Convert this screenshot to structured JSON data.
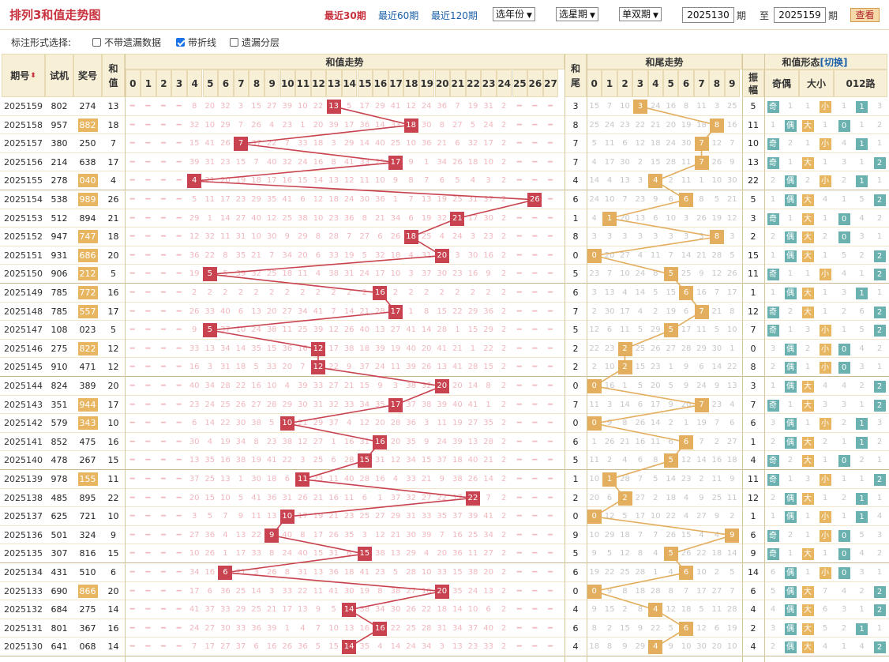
{
  "header": {
    "title": "排列3和值走势图",
    "periods": [
      "最近30期",
      "最近60期",
      "最近120期"
    ],
    "active_period": 0,
    "year_select": "选年份",
    "week_select": "选星期",
    "parity_select": "单双期",
    "from_issue": "2025130",
    "from_suffix": "期",
    "to_prefix": "至",
    "to_issue": "2025159",
    "to_suffix": "期",
    "query_label": "查看"
  },
  "options": {
    "label": "标注形式选择:",
    "items": [
      {
        "label": "不带遗漏数据",
        "checked": false
      },
      {
        "label": "带折线",
        "checked": true
      },
      {
        "label": "遗漏分层",
        "checked": false
      }
    ]
  },
  "columns": {
    "issue": "期号",
    "trial": "试机",
    "draw": "奖号",
    "sum": "和值",
    "sum_trend": "和值走势",
    "tail": "和尾",
    "tail_trend": "和尾走势",
    "amplitude": "振幅",
    "sum_form": "和值形态",
    "switch": "[切换]",
    "odd_even": "奇偶",
    "size": "大小",
    "route": "012路",
    "sum_values": [
      "0",
      "1",
      "2",
      "3",
      "4",
      "5",
      "6",
      "7",
      "8",
      "9",
      "10",
      "11",
      "12",
      "13",
      "14",
      "15",
      "16",
      "17",
      "18",
      "19",
      "20",
      "21",
      "22",
      "23",
      "24",
      "25",
      "26",
      "27"
    ],
    "tail_values": [
      "0",
      "1",
      "2",
      "3",
      "4",
      "5",
      "6",
      "7",
      "8",
      "9"
    ],
    "route_values": [
      "0",
      "1",
      "2"
    ]
  },
  "colors": {
    "sum_mark": "#c8424f",
    "tail_mark": "#e3ae5e",
    "teal": "#6bb1b0",
    "gold": "#e8b560"
  },
  "rows": [
    {
      "issue": "2025159",
      "trial": "802",
      "draw": "274",
      "group6": false,
      "sum": "13",
      "tail": "3",
      "amp": "5",
      "oe": "奇",
      "oeIsOdd": true,
      "oeMiss": "1",
      "sz": "小",
      "szIsBig": false,
      "szMiss": "1",
      "route": "1",
      "r": [
        "1",
        "1",
        "3"
      ]
    },
    {
      "issue": "2025158",
      "trial": "957",
      "draw": "882",
      "group6": true,
      "sum": "18",
      "tail": "8",
      "amp": "11",
      "oe": "偶",
      "oeIsOdd": false,
      "oeMiss": "1",
      "sz": "大",
      "szIsBig": true,
      "szMiss": "1",
      "route": "0",
      "r": [
        "0",
        "1",
        "2"
      ]
    },
    {
      "issue": "2025157",
      "trial": "380",
      "draw": "250",
      "group6": false,
      "sum": "7",
      "tail": "7",
      "amp": "10",
      "oe": "奇",
      "oeIsOdd": true,
      "oeMiss": "2",
      "sz": "小",
      "szIsBig": false,
      "szMiss": "1",
      "route": "1",
      "r": [
        "4",
        "1",
        "1"
      ]
    },
    {
      "issue": "2025156",
      "trial": "214",
      "draw": "638",
      "group6": false,
      "sum": "17",
      "tail": "7",
      "amp": "13",
      "oe": "奇",
      "oeIsOdd": true,
      "oeMiss": "1",
      "sz": "大",
      "szIsBig": true,
      "szMiss": "1",
      "route": "2",
      "r": [
        "3",
        "1",
        "2"
      ]
    },
    {
      "issue": "2025155",
      "trial": "278",
      "draw": "040",
      "group6": true,
      "sum": "4",
      "tail": "4",
      "amp": "22",
      "oe": "偶",
      "oeIsOdd": false,
      "oeMiss": "2",
      "sz": "小",
      "szIsBig": false,
      "szMiss": "2",
      "route": "1",
      "r": [
        "2",
        "1",
        "1"
      ]
    },
    {
      "issue": "2025154",
      "trial": "538",
      "draw": "989",
      "group6": true,
      "sum": "26",
      "tail": "6",
      "amp": "5",
      "oe": "偶",
      "oeIsOdd": false,
      "oeMiss": "1",
      "sz": "大",
      "szIsBig": true,
      "szMiss": "4",
      "route": "2",
      "r": [
        "1",
        "5",
        "2"
      ]
    },
    {
      "issue": "2025153",
      "trial": "512",
      "draw": "894",
      "group6": false,
      "sum": "21",
      "tail": "1",
      "amp": "3",
      "oe": "奇",
      "oeIsOdd": true,
      "oeMiss": "1",
      "sz": "大",
      "szIsBig": true,
      "szMiss": "1",
      "route": "0",
      "r": [
        "0",
        "4",
        "2"
      ]
    },
    {
      "issue": "2025152",
      "trial": "947",
      "draw": "747",
      "group6": true,
      "sum": "18",
      "tail": "8",
      "amp": "2",
      "oe": "偶",
      "oeIsOdd": false,
      "oeMiss": "2",
      "sz": "大",
      "szIsBig": true,
      "szMiss": "2",
      "route": "0",
      "r": [
        "0",
        "3",
        "1"
      ]
    },
    {
      "issue": "2025151",
      "trial": "931",
      "draw": "686",
      "group6": true,
      "sum": "20",
      "tail": "0",
      "amp": "15",
      "oe": "偶",
      "oeIsOdd": false,
      "oeMiss": "1",
      "sz": "大",
      "szIsBig": true,
      "szMiss": "1",
      "route": "2",
      "r": [
        "5",
        "2",
        "2"
      ]
    },
    {
      "issue": "2025150",
      "trial": "906",
      "draw": "212",
      "group6": true,
      "sum": "5",
      "tail": "5",
      "amp": "11",
      "oe": "奇",
      "oeIsOdd": true,
      "oeMiss": "1",
      "sz": "小",
      "szIsBig": false,
      "szMiss": "1",
      "route": "2",
      "r": [
        "4",
        "1",
        "2"
      ]
    },
    {
      "issue": "2025149",
      "trial": "785",
      "draw": "772",
      "group6": true,
      "sum": "16",
      "tail": "6",
      "amp": "1",
      "oe": "偶",
      "oeIsOdd": false,
      "oeMiss": "1",
      "sz": "大",
      "szIsBig": true,
      "szMiss": "1",
      "route": "1",
      "r": [
        "3",
        "1",
        "1"
      ]
    },
    {
      "issue": "2025148",
      "trial": "785",
      "draw": "557",
      "group6": true,
      "sum": "17",
      "tail": "7",
      "amp": "12",
      "oe": "奇",
      "oeIsOdd": true,
      "oeMiss": "2",
      "sz": "大",
      "szIsBig": true,
      "szMiss": "1",
      "route": "2",
      "r": [
        "2",
        "6",
        "2"
      ]
    },
    {
      "issue": "2025147",
      "trial": "108",
      "draw": "023",
      "group6": false,
      "sum": "5",
      "tail": "5",
      "amp": "7",
      "oe": "奇",
      "oeIsOdd": true,
      "oeMiss": "1",
      "sz": "小",
      "szIsBig": false,
      "szMiss": "3",
      "route": "2",
      "r": [
        "1",
        "5",
        "2"
      ]
    },
    {
      "issue": "2025146",
      "trial": "275",
      "draw": "822",
      "group6": true,
      "sum": "12",
      "tail": "2",
      "amp": "0",
      "oe": "偶",
      "oeIsOdd": false,
      "oeMiss": "3",
      "sz": "小",
      "szIsBig": false,
      "szMiss": "2",
      "route": "0",
      "r": [
        "0",
        "4",
        "2"
      ]
    },
    {
      "issue": "2025145",
      "trial": "910",
      "draw": "471",
      "group6": false,
      "sum": "12",
      "tail": "2",
      "amp": "8",
      "oe": "偶",
      "oeIsOdd": false,
      "oeMiss": "2",
      "sz": "小",
      "szIsBig": false,
      "szMiss": "1",
      "route": "0",
      "r": [
        "0",
        "3",
        "1"
      ]
    },
    {
      "issue": "2025144",
      "trial": "824",
      "draw": "389",
      "group6": false,
      "sum": "20",
      "tail": "0",
      "amp": "3",
      "oe": "偶",
      "oeIsOdd": false,
      "oeMiss": "1",
      "sz": "大",
      "szIsBig": true,
      "szMiss": "4",
      "route": "2",
      "r": [
        "4",
        "2",
        "2"
      ]
    },
    {
      "issue": "2025143",
      "trial": "351",
      "draw": "944",
      "group6": true,
      "sum": "17",
      "tail": "7",
      "amp": "7",
      "oe": "奇",
      "oeIsOdd": true,
      "oeMiss": "1",
      "sz": "大",
      "szIsBig": true,
      "szMiss": "3",
      "route": "2",
      "r": [
        "3",
        "1",
        "2"
      ]
    },
    {
      "issue": "2025142",
      "trial": "579",
      "draw": "343",
      "group6": true,
      "sum": "10",
      "tail": "0",
      "amp": "6",
      "oe": "偶",
      "oeIsOdd": false,
      "oeMiss": "3",
      "sz": "小",
      "szIsBig": false,
      "szMiss": "1",
      "route": "1",
      "r": [
        "2",
        "1",
        "3"
      ]
    },
    {
      "issue": "2025141",
      "trial": "852",
      "draw": "475",
      "group6": false,
      "sum": "16",
      "tail": "6",
      "amp": "1",
      "oe": "偶",
      "oeIsOdd": false,
      "oeMiss": "2",
      "sz": "大",
      "szIsBig": true,
      "szMiss": "2",
      "route": "1",
      "r": [
        "1",
        "1",
        "2"
      ]
    },
    {
      "issue": "2025140",
      "trial": "478",
      "draw": "267",
      "group6": false,
      "sum": "15",
      "tail": "5",
      "amp": "4",
      "oe": "奇",
      "oeIsOdd": true,
      "oeMiss": "2",
      "sz": "大",
      "szIsBig": true,
      "szMiss": "1",
      "route": "0",
      "r": [
        "0",
        "2",
        "1"
      ]
    },
    {
      "issue": "2025139",
      "trial": "978",
      "draw": "155",
      "group6": true,
      "sum": "11",
      "tail": "1",
      "amp": "11",
      "oe": "奇",
      "oeIsOdd": true,
      "oeMiss": "1",
      "sz": "小",
      "szIsBig": false,
      "szMiss": "3",
      "route": "2",
      "r": [
        "1",
        "1",
        "2"
      ]
    },
    {
      "issue": "2025138",
      "trial": "485",
      "draw": "895",
      "group6": false,
      "sum": "22",
      "tail": "2",
      "amp": "12",
      "oe": "偶",
      "oeIsOdd": false,
      "oeMiss": "2",
      "sz": "大",
      "szIsBig": true,
      "szMiss": "1",
      "route": "1",
      "r": [
        "2",
        "1",
        "1"
      ]
    },
    {
      "issue": "2025137",
      "trial": "625",
      "draw": "721",
      "group6": false,
      "sum": "10",
      "tail": "0",
      "amp": "1",
      "oe": "偶",
      "oeIsOdd": false,
      "oeMiss": "1",
      "sz": "小",
      "szIsBig": false,
      "szMiss": "1",
      "route": "1",
      "r": [
        "1",
        "1",
        "4"
      ]
    },
    {
      "issue": "2025136",
      "trial": "501",
      "draw": "324",
      "group6": false,
      "sum": "9",
      "tail": "9",
      "amp": "6",
      "oe": "奇",
      "oeIsOdd": true,
      "oeMiss": "2",
      "sz": "小",
      "szIsBig": false,
      "szMiss": "1",
      "route": "0",
      "r": [
        "0",
        "5",
        "3"
      ]
    },
    {
      "issue": "2025135",
      "trial": "307",
      "draw": "816",
      "group6": false,
      "sum": "15",
      "tail": "5",
      "amp": "9",
      "oe": "奇",
      "oeIsOdd": true,
      "oeMiss": "1",
      "sz": "大",
      "szIsBig": true,
      "szMiss": "1",
      "route": "0",
      "r": [
        "0",
        "4",
        "2"
      ]
    },
    {
      "issue": "2025134",
      "trial": "431",
      "draw": "510",
      "group6": false,
      "sum": "6",
      "tail": "6",
      "amp": "14",
      "oe": "偶",
      "oeIsOdd": false,
      "oeMiss": "6",
      "sz": "小",
      "szIsBig": false,
      "szMiss": "1",
      "route": "0",
      "r": [
        "0",
        "3",
        "1"
      ]
    },
    {
      "issue": "2025133",
      "trial": "690",
      "draw": "866",
      "group6": true,
      "sum": "20",
      "tail": "0",
      "amp": "6",
      "oe": "偶",
      "oeIsOdd": false,
      "oeMiss": "5",
      "sz": "大",
      "szIsBig": true,
      "szMiss": "7",
      "route": "2",
      "r": [
        "4",
        "2",
        "2"
      ]
    },
    {
      "issue": "2025132",
      "trial": "684",
      "draw": "275",
      "group6": false,
      "sum": "14",
      "tail": "4",
      "amp": "4",
      "oe": "偶",
      "oeIsOdd": false,
      "oeMiss": "4",
      "sz": "大",
      "szIsBig": true,
      "szMiss": "6",
      "route": "2",
      "r": [
        "3",
        "1",
        "2"
      ]
    },
    {
      "issue": "2025131",
      "trial": "801",
      "draw": "367",
      "group6": false,
      "sum": "16",
      "tail": "6",
      "amp": "2",
      "oe": "偶",
      "oeIsOdd": false,
      "oeMiss": "3",
      "sz": "大",
      "szIsBig": true,
      "szMiss": "5",
      "route": "1",
      "r": [
        "2",
        "1",
        "1"
      ]
    },
    {
      "issue": "2025130",
      "trial": "641",
      "draw": "068",
      "group6": false,
      "sum": "14",
      "tail": "4",
      "amp": "4",
      "oe": "偶",
      "oeIsOdd": false,
      "oeMiss": "2",
      "sz": "大",
      "szIsBig": true,
      "szMiss": "4",
      "route": "2",
      "r": [
        "1",
        "4",
        "2"
      ]
    }
  ]
}
